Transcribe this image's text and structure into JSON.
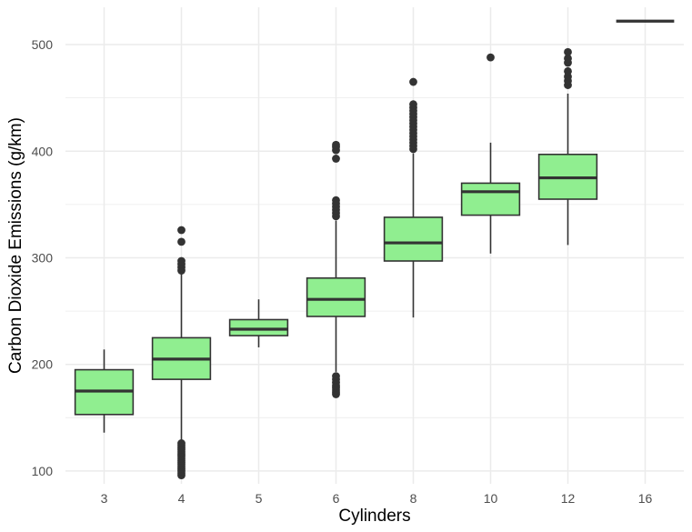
{
  "chart_data": {
    "type": "boxplot",
    "xlabel": "Cylinders",
    "ylabel": "Carbon Dioxide Emissions (g/km)",
    "ylim": [
      88,
      535
    ],
    "y_ticks": [
      100,
      200,
      300,
      400,
      500
    ],
    "grid": true,
    "colors": {
      "box_fill": "#90ee90",
      "box_stroke": "#333333",
      "grid": "#ebebeb",
      "background": "#ffffff"
    },
    "categories": [
      "3",
      "4",
      "5",
      "6",
      "8",
      "10",
      "12",
      "16"
    ],
    "boxes": [
      {
        "category": "3",
        "whisker_low": 136,
        "q1": 153,
        "median": 175,
        "q3": 195,
        "whisker_high": 214,
        "outliers": []
      },
      {
        "category": "4",
        "whisker_low": 128,
        "q1": 186,
        "median": 205,
        "q3": 225,
        "whisker_high": 285,
        "outliers": [
          96,
          98,
          100,
          102,
          104,
          106,
          108,
          110,
          112,
          114,
          116,
          118,
          120,
          122,
          124,
          126,
          288,
          291,
          294,
          297,
          315,
          326
        ]
      },
      {
        "category": "5",
        "whisker_low": 216,
        "q1": 227,
        "median": 233,
        "q3": 242,
        "whisker_high": 261,
        "outliers": []
      },
      {
        "category": "6",
        "whisker_low": 193,
        "q1": 245,
        "median": 261,
        "q3": 281,
        "whisker_high": 335,
        "outliers": [
          172,
          174,
          176,
          178,
          180,
          183,
          186,
          189,
          339,
          342,
          345,
          348,
          351,
          354,
          393,
          401,
          404,
          406
        ]
      },
      {
        "category": "8",
        "whisker_low": 244,
        "q1": 297,
        "median": 314,
        "q3": 338,
        "whisker_high": 398,
        "outliers": [
          402,
          405,
          408,
          411,
          414,
          417,
          420,
          423,
          426,
          429,
          432,
          435,
          438,
          441,
          444,
          465
        ]
      },
      {
        "category": "10",
        "whisker_low": 304,
        "q1": 340,
        "median": 362,
        "q3": 370,
        "whisker_high": 408,
        "outliers": [
          488
        ]
      },
      {
        "category": "12",
        "whisker_low": 312,
        "q1": 355,
        "median": 375,
        "q3": 397,
        "whisker_high": 454,
        "outliers": [
          462,
          466,
          470,
          475,
          483,
          487,
          493
        ]
      },
      {
        "category": "16",
        "whisker_low": 522,
        "q1": 522,
        "median": 522,
        "q3": 522,
        "whisker_high": 522,
        "outliers": []
      }
    ]
  }
}
